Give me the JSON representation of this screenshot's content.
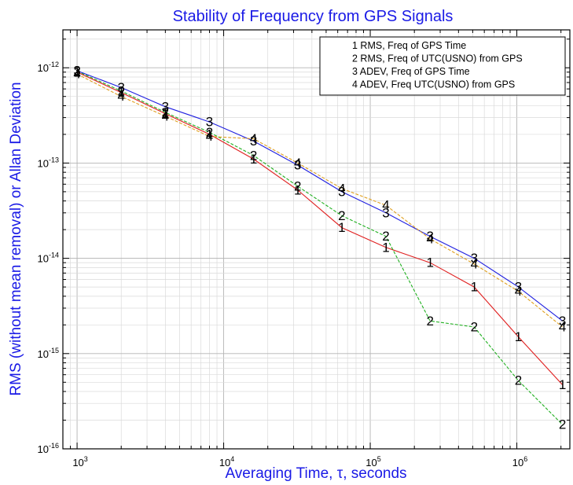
{
  "chart_data": {
    "type": "line",
    "title": "Stability of Frequency from GPS Signals",
    "xlabel": "Averaging Time, τ, seconds",
    "ylabel": "RMS (without mean removal) or Allan Deviation",
    "x_scale": "log",
    "y_scale": "log",
    "xlim": [
      800,
      2300000
    ],
    "ylim": [
      1e-16,
      2.5e-12
    ],
    "grid": true,
    "legend_position": "top-right",
    "x_ticks": [
      {
        "value": 1000,
        "base": "10",
        "exp": "3"
      },
      {
        "value": 10000,
        "base": "10",
        "exp": "4"
      },
      {
        "value": 100000,
        "base": "10",
        "exp": "5"
      },
      {
        "value": 1000000,
        "base": "10",
        "exp": "6"
      }
    ],
    "y_ticks": [
      {
        "value": 1e-16,
        "base": "10",
        "exp": "-16"
      },
      {
        "value": 1e-15,
        "base": "10",
        "exp": "-15"
      },
      {
        "value": 1e-14,
        "base": "10",
        "exp": "-14"
      },
      {
        "value": 1e-13,
        "base": "10",
        "exp": "-13"
      },
      {
        "value": 1e-12,
        "base": "10",
        "exp": "-12"
      }
    ],
    "x": [
      1000,
      2000,
      4000,
      8000,
      16000,
      32000,
      64000,
      128000,
      256000,
      512000,
      1024000,
      2048000
    ],
    "series": [
      {
        "name": "RMS, Freq of GPS Time",
        "marker": "1",
        "color": "#e02020",
        "values": [
          9e-13,
          5.5e-13,
          3.3e-13,
          2e-13,
          1.1e-13,
          5.2e-14,
          2.1e-14,
          1.3e-14,
          9e-15,
          5e-15,
          1.5e-15,
          4.7e-16
        ]
      },
      {
        "name": "RMS, Freq of UTC(USNO) from GPS",
        "marker": "2",
        "color": "#20b020",
        "values": [
          9.2e-13,
          5.7e-13,
          3.4e-13,
          2.1e-13,
          1.2e-13,
          5.7e-14,
          2.8e-14,
          1.7e-14,
          2.2e-15,
          1.9e-15,
          5.2e-16,
          1.8e-16
        ]
      },
      {
        "name": "ADEV, Freq of GPS Time",
        "marker": "3",
        "color": "#2020e0",
        "values": [
          9.3e-13,
          6.2e-13,
          3.9e-13,
          2.7e-13,
          1.7e-13,
          9.5e-14,
          5e-14,
          3e-14,
          1.7e-14,
          1e-14,
          5e-15,
          2.2e-15
        ]
      },
      {
        "name": "ADEV, Freq UTC(USNO) from GPS",
        "marker": "4",
        "color": "#e0a020",
        "values": [
          8.6e-13,
          5e-13,
          3.1e-13,
          1.9e-13,
          1.8e-13,
          1e-13,
          5.4e-14,
          3.6e-14,
          1.6e-14,
          8.7e-15,
          4.5e-15,
          1.9e-15
        ]
      }
    ]
  }
}
